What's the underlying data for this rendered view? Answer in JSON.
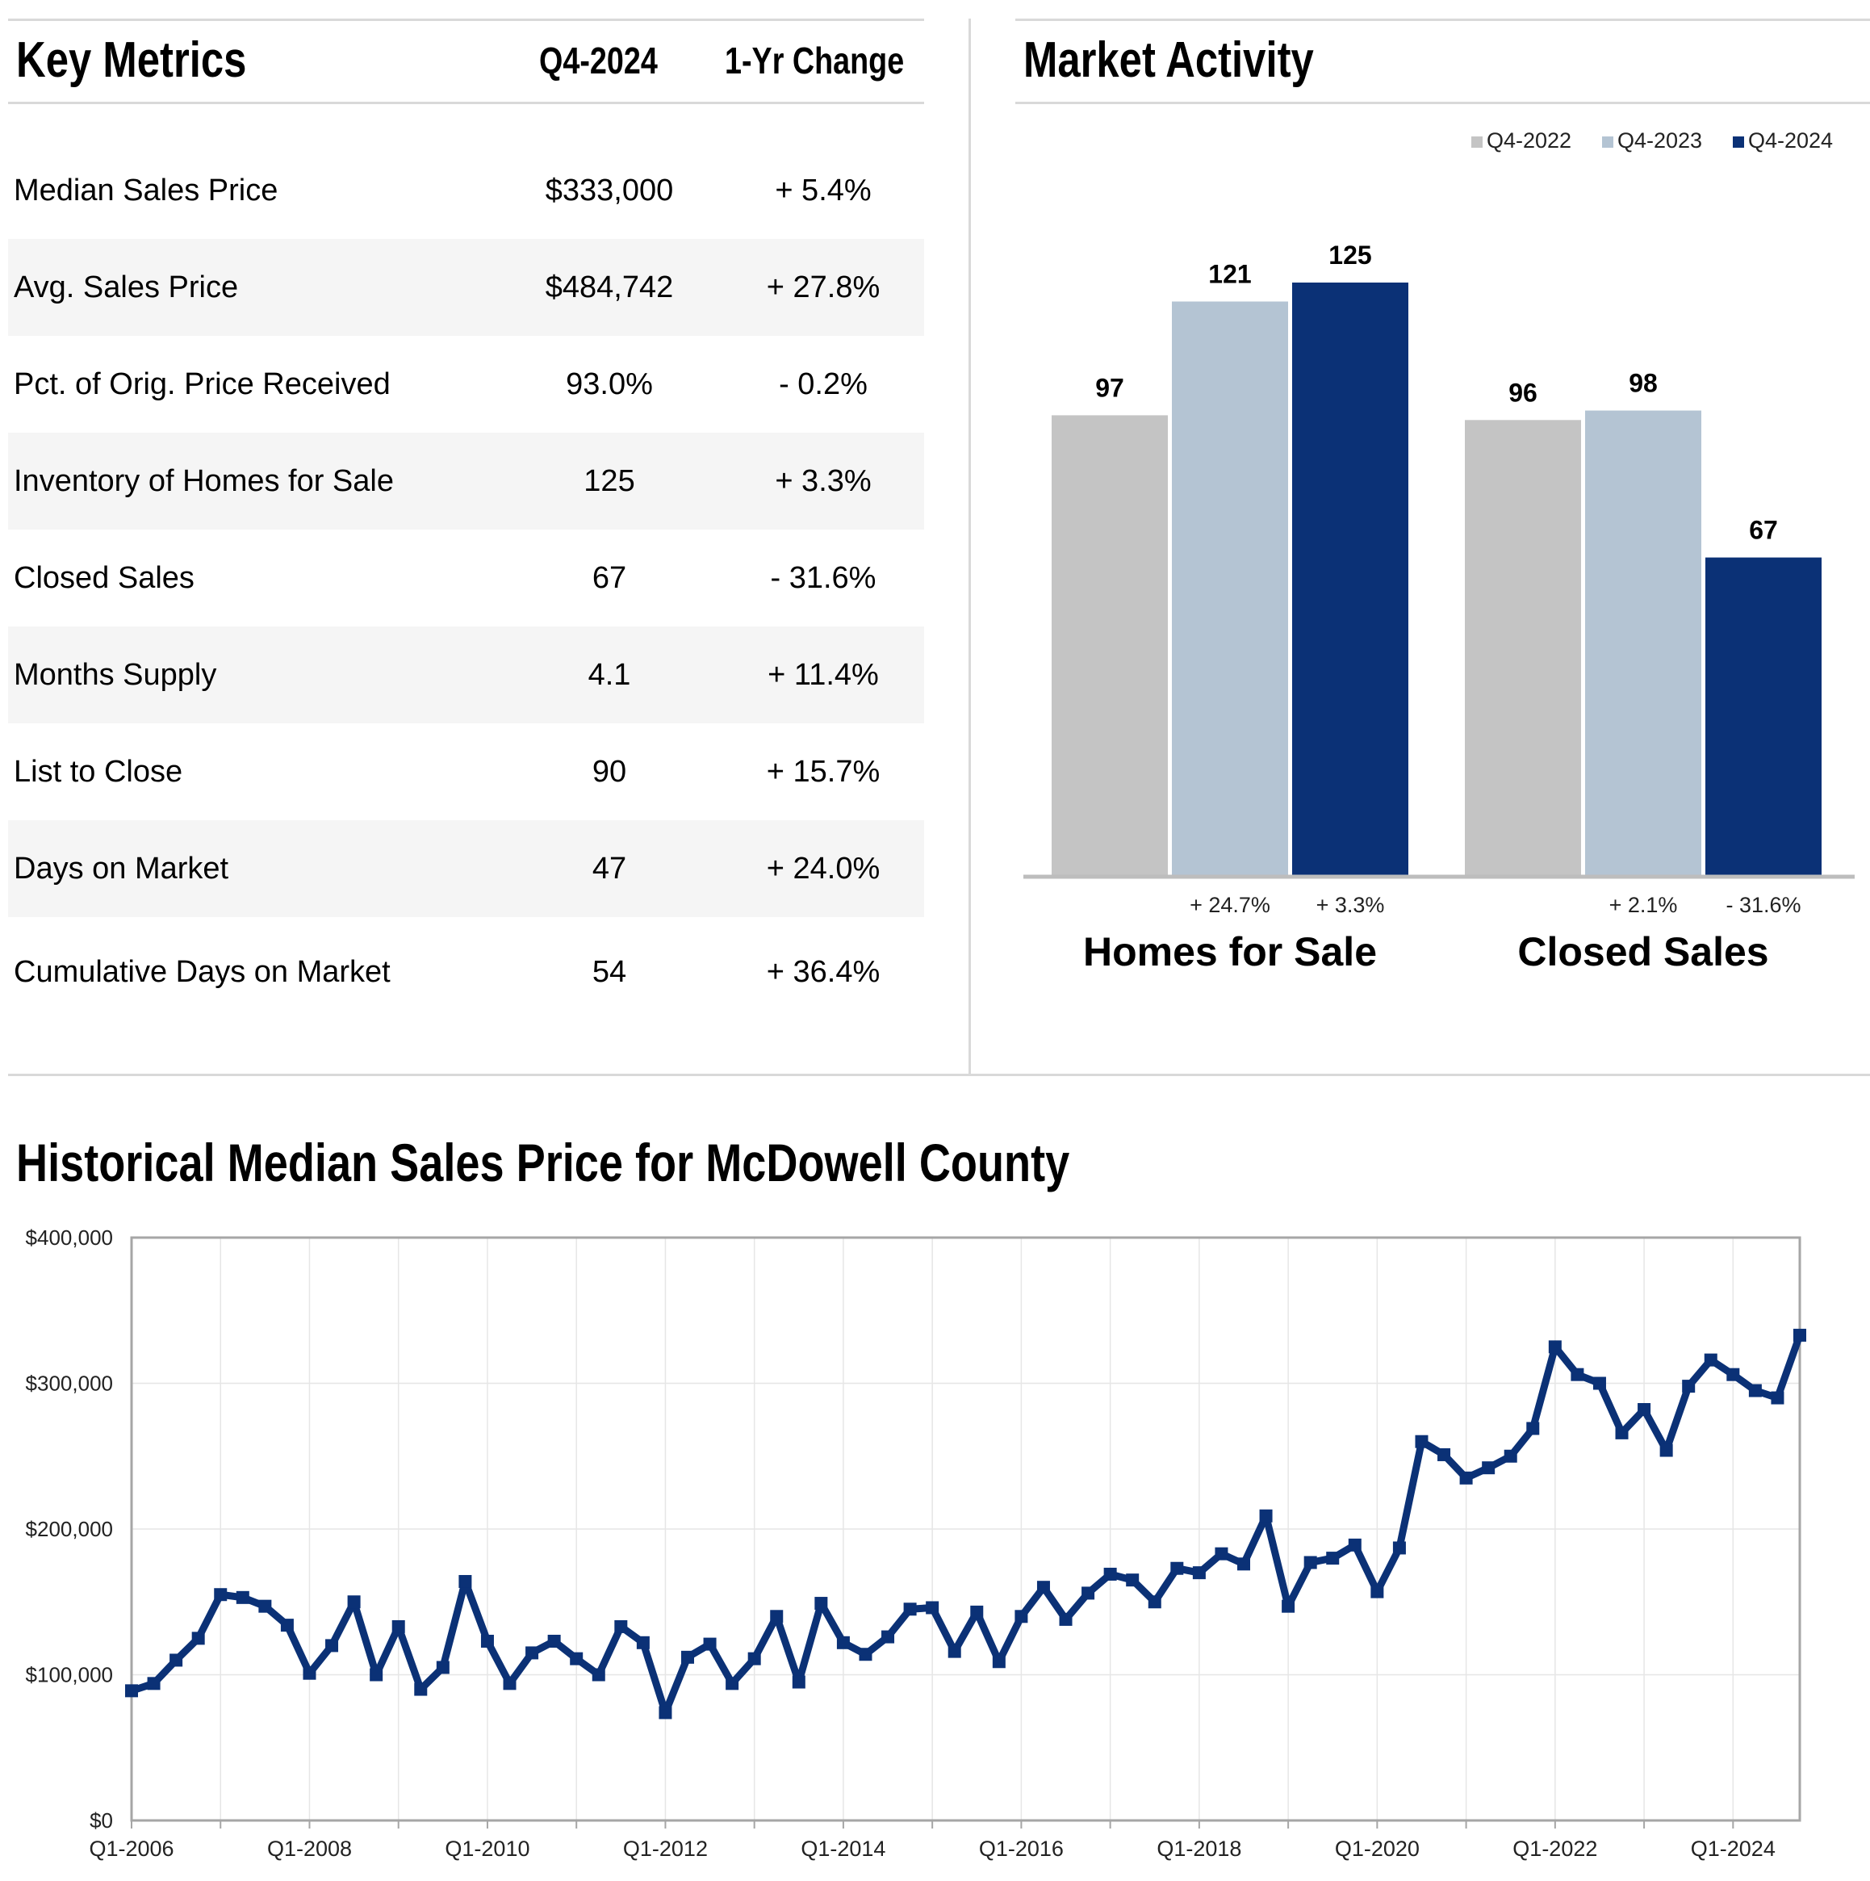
{
  "key_metrics": {
    "title": "Key Metrics",
    "col_period": "Q4-2024",
    "col_change": "1-Yr Change",
    "rows": [
      {
        "metric": "Median Sales Price",
        "value": "$333,000",
        "change": "+ 5.4%"
      },
      {
        "metric": "Avg. Sales Price",
        "value": "$484,742",
        "change": "+ 27.8%"
      },
      {
        "metric": "Pct. of Orig. Price Received",
        "value": "93.0%",
        "change": "- 0.2%"
      },
      {
        "metric": "Inventory of Homes for Sale",
        "value": "125",
        "change": "+ 3.3%"
      },
      {
        "metric": "Closed Sales",
        "value": "67",
        "change": "- 31.6%"
      },
      {
        "metric": "Months Supply",
        "value": "4.1",
        "change": "+ 11.4%"
      },
      {
        "metric": "List to Close",
        "value": "90",
        "change": "+ 15.7%"
      },
      {
        "metric": "Days on Market",
        "value": "47",
        "change": "+ 24.0%"
      },
      {
        "metric": "Cumulative Days on Market",
        "value": "54",
        "change": "+ 36.4%"
      }
    ]
  },
  "chart_data": [
    {
      "type": "bar",
      "title": "Market Activity",
      "legend_position": "top-right",
      "categories": [
        "Homes for Sale",
        "Closed Sales"
      ],
      "series": [
        {
          "name": "Q4-2022",
          "color": "#c4c4c4",
          "values": [
            97,
            96
          ],
          "changes": [
            "",
            ""
          ]
        },
        {
          "name": "Q4-2023",
          "color": "#b4c4d3",
          "values": [
            121,
            98
          ],
          "changes": [
            "+ 24.7%",
            "+ 2.1%"
          ]
        },
        {
          "name": "Q4-2024",
          "color": "#0b3176",
          "values": [
            125,
            67
          ],
          "changes": [
            "+ 3.3%",
            "- 31.6%"
          ]
        }
      ],
      "ylim": [
        0,
        125
      ]
    },
    {
      "type": "line",
      "title": "Historical Median Sales Price for McDowell County",
      "color": "#0b3176",
      "grid": true,
      "ylim": [
        0,
        400000
      ],
      "yticks": [
        "$0",
        "$100,000",
        "$200,000",
        "$300,000",
        "$400,000"
      ],
      "xticks": [
        "Q1-2006",
        "Q1-2008",
        "Q1-2010",
        "Q1-2012",
        "Q1-2014",
        "Q1-2016",
        "Q1-2018",
        "Q1-2020",
        "Q1-2022",
        "Q1-2024"
      ],
      "x_start": "Q1-2006",
      "values": [
        89000,
        94000,
        110000,
        125000,
        155000,
        153000,
        147000,
        134000,
        101000,
        120000,
        150000,
        100000,
        133000,
        90000,
        105000,
        164000,
        123000,
        94000,
        115000,
        123000,
        111000,
        100000,
        133000,
        122000,
        74000,
        112000,
        121000,
        94000,
        111000,
        140000,
        95000,
        149000,
        122000,
        114000,
        126000,
        145000,
        146000,
        116000,
        143000,
        109000,
        140000,
        160000,
        138000,
        156000,
        169000,
        165000,
        150000,
        173000,
        170000,
        183000,
        176000,
        209000,
        147000,
        177000,
        180000,
        189000,
        157000,
        187000,
        260000,
        251000,
        235000,
        242000,
        250000,
        269000,
        325000,
        306000,
        300000,
        266000,
        282000,
        254000,
        298000,
        316000,
        306000,
        295000,
        290000,
        333000
      ]
    }
  ]
}
